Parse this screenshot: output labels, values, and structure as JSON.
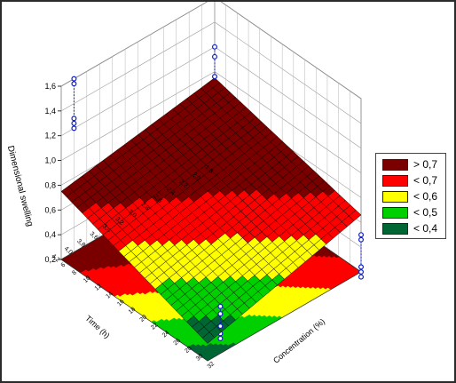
{
  "chart_data": {
    "type": "surface3d",
    "title": "",
    "axes": {
      "z": {
        "label": "Dimensional swelling",
        "range": [
          0.2,
          1.6
        ],
        "ticks": [
          "0,2",
          "0,4",
          "0,6",
          "0,8",
          "1,0",
          "1,2",
          "1,4",
          "1,6"
        ]
      },
      "time": {
        "label": "Time (h)",
        "range": [
          1.8,
          4.2
        ],
        "ticks": [
          "1,8",
          "2,0",
          "2,2",
          "2,4",
          "2,6",
          "2,8",
          "3,0",
          "3,2",
          "3,4",
          "3,6",
          "3,8",
          "4,0",
          "4,2"
        ]
      },
      "concentration": {
        "label": "Concentration (%)",
        "range": [
          6,
          32
        ],
        "ticks": [
          "6",
          "8",
          "10",
          "12",
          "14",
          "16",
          "18",
          "20",
          "22",
          "24",
          "26",
          "28",
          "30",
          "32"
        ]
      }
    },
    "surface_corners": {
      "conc6_time4.2": 0.75,
      "conc32_time4.2": 0.34,
      "conc6_time1.8": 0.95,
      "conc32_time1.8": 0.66
    },
    "observations": [
      {
        "conc": 32,
        "time": 4.0,
        "values": [
          0.32,
          0.36,
          0.42,
          0.52,
          0.58
        ]
      },
      {
        "conc": 32,
        "time": 1.8,
        "values": [
          0.16,
          0.2,
          0.24,
          0.46,
          0.5
        ]
      },
      {
        "conc": 6,
        "time": 4.0,
        "values": [
          1.2,
          1.24,
          1.28,
          1.56,
          1.6
        ]
      },
      {
        "conc": 6,
        "time": 1.8,
        "values": [
          0.64,
          0.7,
          0.96,
          1.12,
          1.2
        ]
      }
    ],
    "grid": true,
    "legend": {
      "position": "right",
      "entries": [
        {
          "label": "> 0,7",
          "color": "#7a0000"
        },
        {
          "label": "< 0,7",
          "color": "#ff0000"
        },
        {
          "label": "< 0,6",
          "color": "#ffff00"
        },
        {
          "label": "< 0,5",
          "color": "#00d000"
        },
        {
          "label": "< 0,4",
          "color": "#006633"
        }
      ]
    }
  }
}
